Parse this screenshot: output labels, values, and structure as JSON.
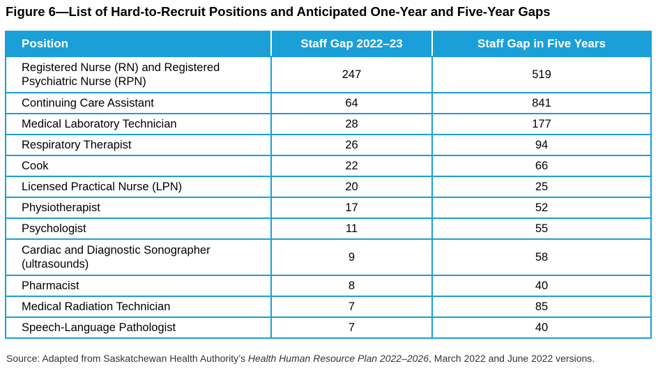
{
  "figure": {
    "title": "Figure 6—List of Hard-to-Recruit Positions and Anticipated One-Year and Five-Year Gaps"
  },
  "table": {
    "headers": [
      "Position",
      "Staff Gap 2022–23",
      "Staff Gap in Five Years"
    ],
    "rows": [
      {
        "position": "Registered Nurse (RN) and Registered Psychiatric Nurse (RPN)",
        "gap_2022_23": "247",
        "gap_five_years": "519"
      },
      {
        "position": "Continuing Care Assistant",
        "gap_2022_23": "64",
        "gap_five_years": "841"
      },
      {
        "position": "Medical Laboratory Technician",
        "gap_2022_23": "28",
        "gap_five_years": "177"
      },
      {
        "position": "Respiratory Therapist",
        "gap_2022_23": "26",
        "gap_five_years": "94"
      },
      {
        "position": "Cook",
        "gap_2022_23": "22",
        "gap_five_years": "66"
      },
      {
        "position": "Licensed Practical Nurse (LPN)",
        "gap_2022_23": "20",
        "gap_five_years": "25"
      },
      {
        "position": "Physiotherapist",
        "gap_2022_23": "17",
        "gap_five_years": "52"
      },
      {
        "position": "Psychologist",
        "gap_2022_23": "11",
        "gap_five_years": "55"
      },
      {
        "position": "Cardiac and Diagnostic Sonographer (ultrasounds)",
        "gap_2022_23": "9",
        "gap_five_years": "58"
      },
      {
        "position": "Pharmacist",
        "gap_2022_23": "8",
        "gap_five_years": "40"
      },
      {
        "position": "Medical Radiation Technician",
        "gap_2022_23": "7",
        "gap_five_years": "85"
      },
      {
        "position": "Speech-Language Pathologist",
        "gap_2022_23": "7",
        "gap_five_years": "40"
      }
    ]
  },
  "source": {
    "prefix": "Source: Adapted from Saskatchewan Health Authority’s ",
    "document": "Health Human Resource Plan 2022–2026",
    "suffix": ", March 2022 and June 2022 versions."
  },
  "colors": {
    "header_bg": "#1a9fd9",
    "header_text": "#ffffff",
    "border": "#1a9fd9"
  }
}
